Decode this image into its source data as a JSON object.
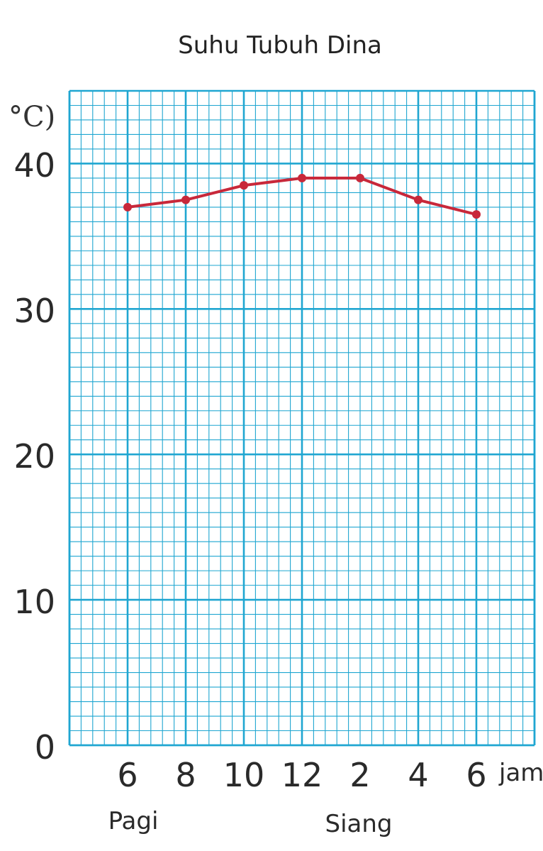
{
  "chart_data": {
    "type": "line",
    "title": "Suhu Tubuh Dina",
    "ylabel": "°C)",
    "xlabel": "jam",
    "x": [
      "6",
      "8",
      "10",
      "12",
      "2",
      "4",
      "6"
    ],
    "series": [
      {
        "values": [
          37,
          37.5,
          38.5,
          39,
          39,
          37.5,
          36.5
        ]
      }
    ],
    "ylim": [
      0,
      45
    ],
    "yticks": [
      "0",
      "10",
      "20",
      "30",
      "40"
    ],
    "annotations": [
      "Pagi",
      "Siang"
    ],
    "grid": true,
    "colors": {
      "grid": "#1fa6d1",
      "line": "#c8283a"
    }
  }
}
